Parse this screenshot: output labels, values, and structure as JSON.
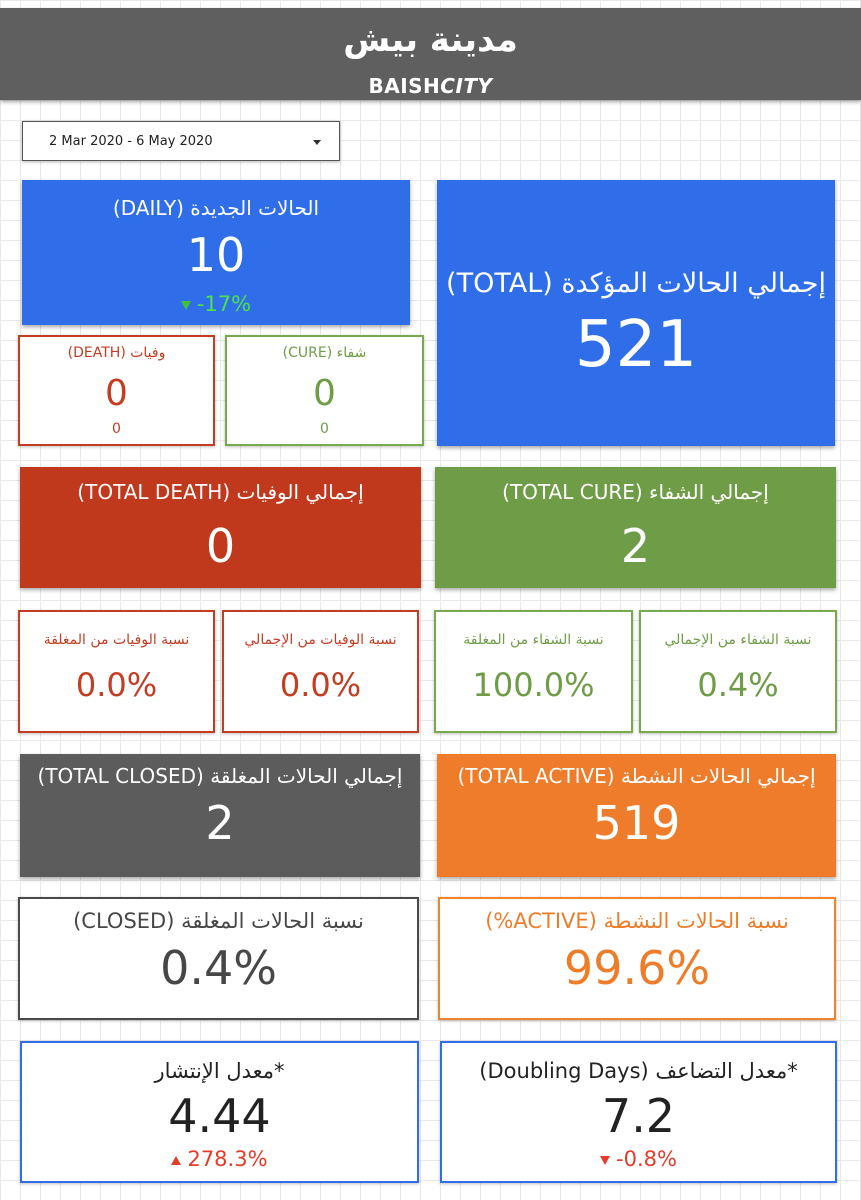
{
  "header": {
    "title_ar": "مدينة بيش",
    "title_en_a": "BAISH",
    "title_en_b": "CITY"
  },
  "date_range": {
    "label": "2 Mar 2020 - 6 May 2020"
  },
  "daily_new": {
    "label": "الحالات الجديدة (DAILY)",
    "value": "10",
    "change": "-17%"
  },
  "total_confirmed": {
    "label": "إجمالي الحالات المؤكدة (TOTAL)",
    "value": "521"
  },
  "death_daily": {
    "label": "وفيات (DEATH)",
    "value": "0",
    "sub": "0"
  },
  "cure_daily": {
    "label": "شفاء (CURE)",
    "value": "0",
    "sub": "0"
  },
  "total_death": {
    "label": "إجمالي الوفيات (TOTAL DEATH)",
    "value": "0"
  },
  "total_cure": {
    "label": "إجمالي الشفاء (TOTAL CURE)",
    "value": "2"
  },
  "death_of_closed": {
    "label": "نسبة الوفيات من المغلقة",
    "value": "0.0%"
  },
  "death_of_total": {
    "label": "نسبة الوفيات من الإجمالي",
    "value": "0.0%"
  },
  "cure_of_closed": {
    "label": "نسبة الشفاء من المغلقة",
    "value": "100.0%"
  },
  "cure_of_total": {
    "label": "نسبة الشفاء من الإجمالي",
    "value": "0.4%"
  },
  "total_closed": {
    "label": "إجمالي الحالات المغلقة (TOTAL CLOSED)",
    "value": "2"
  },
  "total_active": {
    "label": "إجمالي الحالات النشطة (TOTAL ACTIVE)",
    "value": "519"
  },
  "closed_pct": {
    "label": "نسبة الحالات المغلقة (CLOSED)",
    "value": "0.4%"
  },
  "active_pct": {
    "label": "نسبة الحالات النشطة (ACTIVE%)",
    "value": "99.6%"
  },
  "spread_rate": {
    "label": "*معدل الإنتشار",
    "value": "4.44",
    "change": "278.3%"
  },
  "doubling": {
    "label": "*معدل التضاعف (Doubling Days)",
    "value": "7.2",
    "change": "-0.8%"
  },
  "colors": {
    "header": "#5f5f5f",
    "blue": "#2f6ee8",
    "red": "#c1391c",
    "green": "#6f9c47",
    "gray": "#5c5c5c",
    "orange": "#ef7c2a",
    "up_down_green": "#3fc33f",
    "up_down_red": "#e53b2a"
  }
}
